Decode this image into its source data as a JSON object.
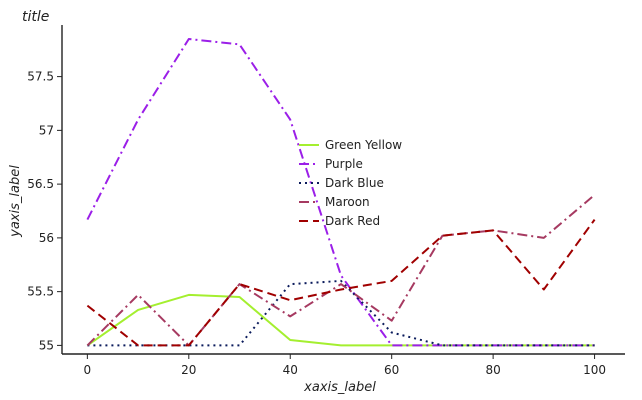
{
  "chart_data": {
    "type": "line",
    "title": "title",
    "xlabel": "xaxis_label",
    "ylabel": "yaxis_label",
    "xlim": [
      -5,
      106
    ],
    "ylim": [
      54.92,
      57.98
    ],
    "x_ticks": [
      0,
      20,
      40,
      60,
      80,
      100
    ],
    "x_tick_labels": [
      "0",
      "20",
      "40",
      "60",
      "80",
      "100"
    ],
    "y_ticks": [
      55,
      55.5,
      56,
      56.5,
      57,
      57.5
    ],
    "y_tick_labels": [
      "55",
      "55.5",
      "56",
      "56.5",
      "57",
      "57.5"
    ],
    "grid": false,
    "legend_position": "center",
    "series": [
      {
        "name": "Green Yellow",
        "color": "#a4ef2f",
        "dash": "solid",
        "points": [
          [
            0,
            55.0
          ],
          [
            10,
            55.33
          ],
          [
            20,
            55.47
          ],
          [
            30,
            55.45
          ],
          [
            40,
            55.05
          ],
          [
            50,
            55.0
          ],
          [
            100,
            55.0
          ]
        ]
      },
      {
        "name": "Purple",
        "color": "#9b1fe8",
        "dash": "dashdot",
        "points": [
          [
            0,
            56.17
          ],
          [
            10,
            57.1
          ],
          [
            20,
            57.85
          ],
          [
            30,
            57.8
          ],
          [
            40,
            57.1
          ],
          [
            50,
            55.65
          ],
          [
            60,
            55.0
          ],
          [
            100,
            55.0
          ]
        ]
      },
      {
        "name": "Dark Blue",
        "color": "#0b1b5c",
        "dash": "dotted",
        "points": [
          [
            0,
            55.0
          ],
          [
            30,
            55.0
          ],
          [
            40,
            55.57
          ],
          [
            50,
            55.6
          ],
          [
            60,
            55.12
          ],
          [
            70,
            55.0
          ],
          [
            100,
            55.0
          ]
        ]
      },
      {
        "name": "Maroon",
        "color": "#a63a61",
        "dash": "dashdot",
        "points": [
          [
            0,
            55.0
          ],
          [
            10,
            55.47
          ],
          [
            20,
            55.0
          ],
          [
            30,
            55.57
          ],
          [
            40,
            55.27
          ],
          [
            50,
            55.57
          ],
          [
            60,
            55.23
          ],
          [
            70,
            56.02
          ],
          [
            80,
            56.07
          ],
          [
            90,
            56.0
          ],
          [
            100,
            56.4
          ]
        ]
      },
      {
        "name": "Dark Red",
        "color": "#a00000",
        "dash": "dashed",
        "points": [
          [
            0,
            55.37
          ],
          [
            10,
            55.0
          ],
          [
            20,
            55.0
          ],
          [
            30,
            55.57
          ],
          [
            40,
            55.42
          ],
          [
            50,
            55.52
          ],
          [
            60,
            55.6
          ],
          [
            70,
            56.02
          ],
          [
            80,
            56.07
          ],
          [
            90,
            55.52
          ],
          [
            100,
            56.17
          ]
        ]
      }
    ]
  }
}
